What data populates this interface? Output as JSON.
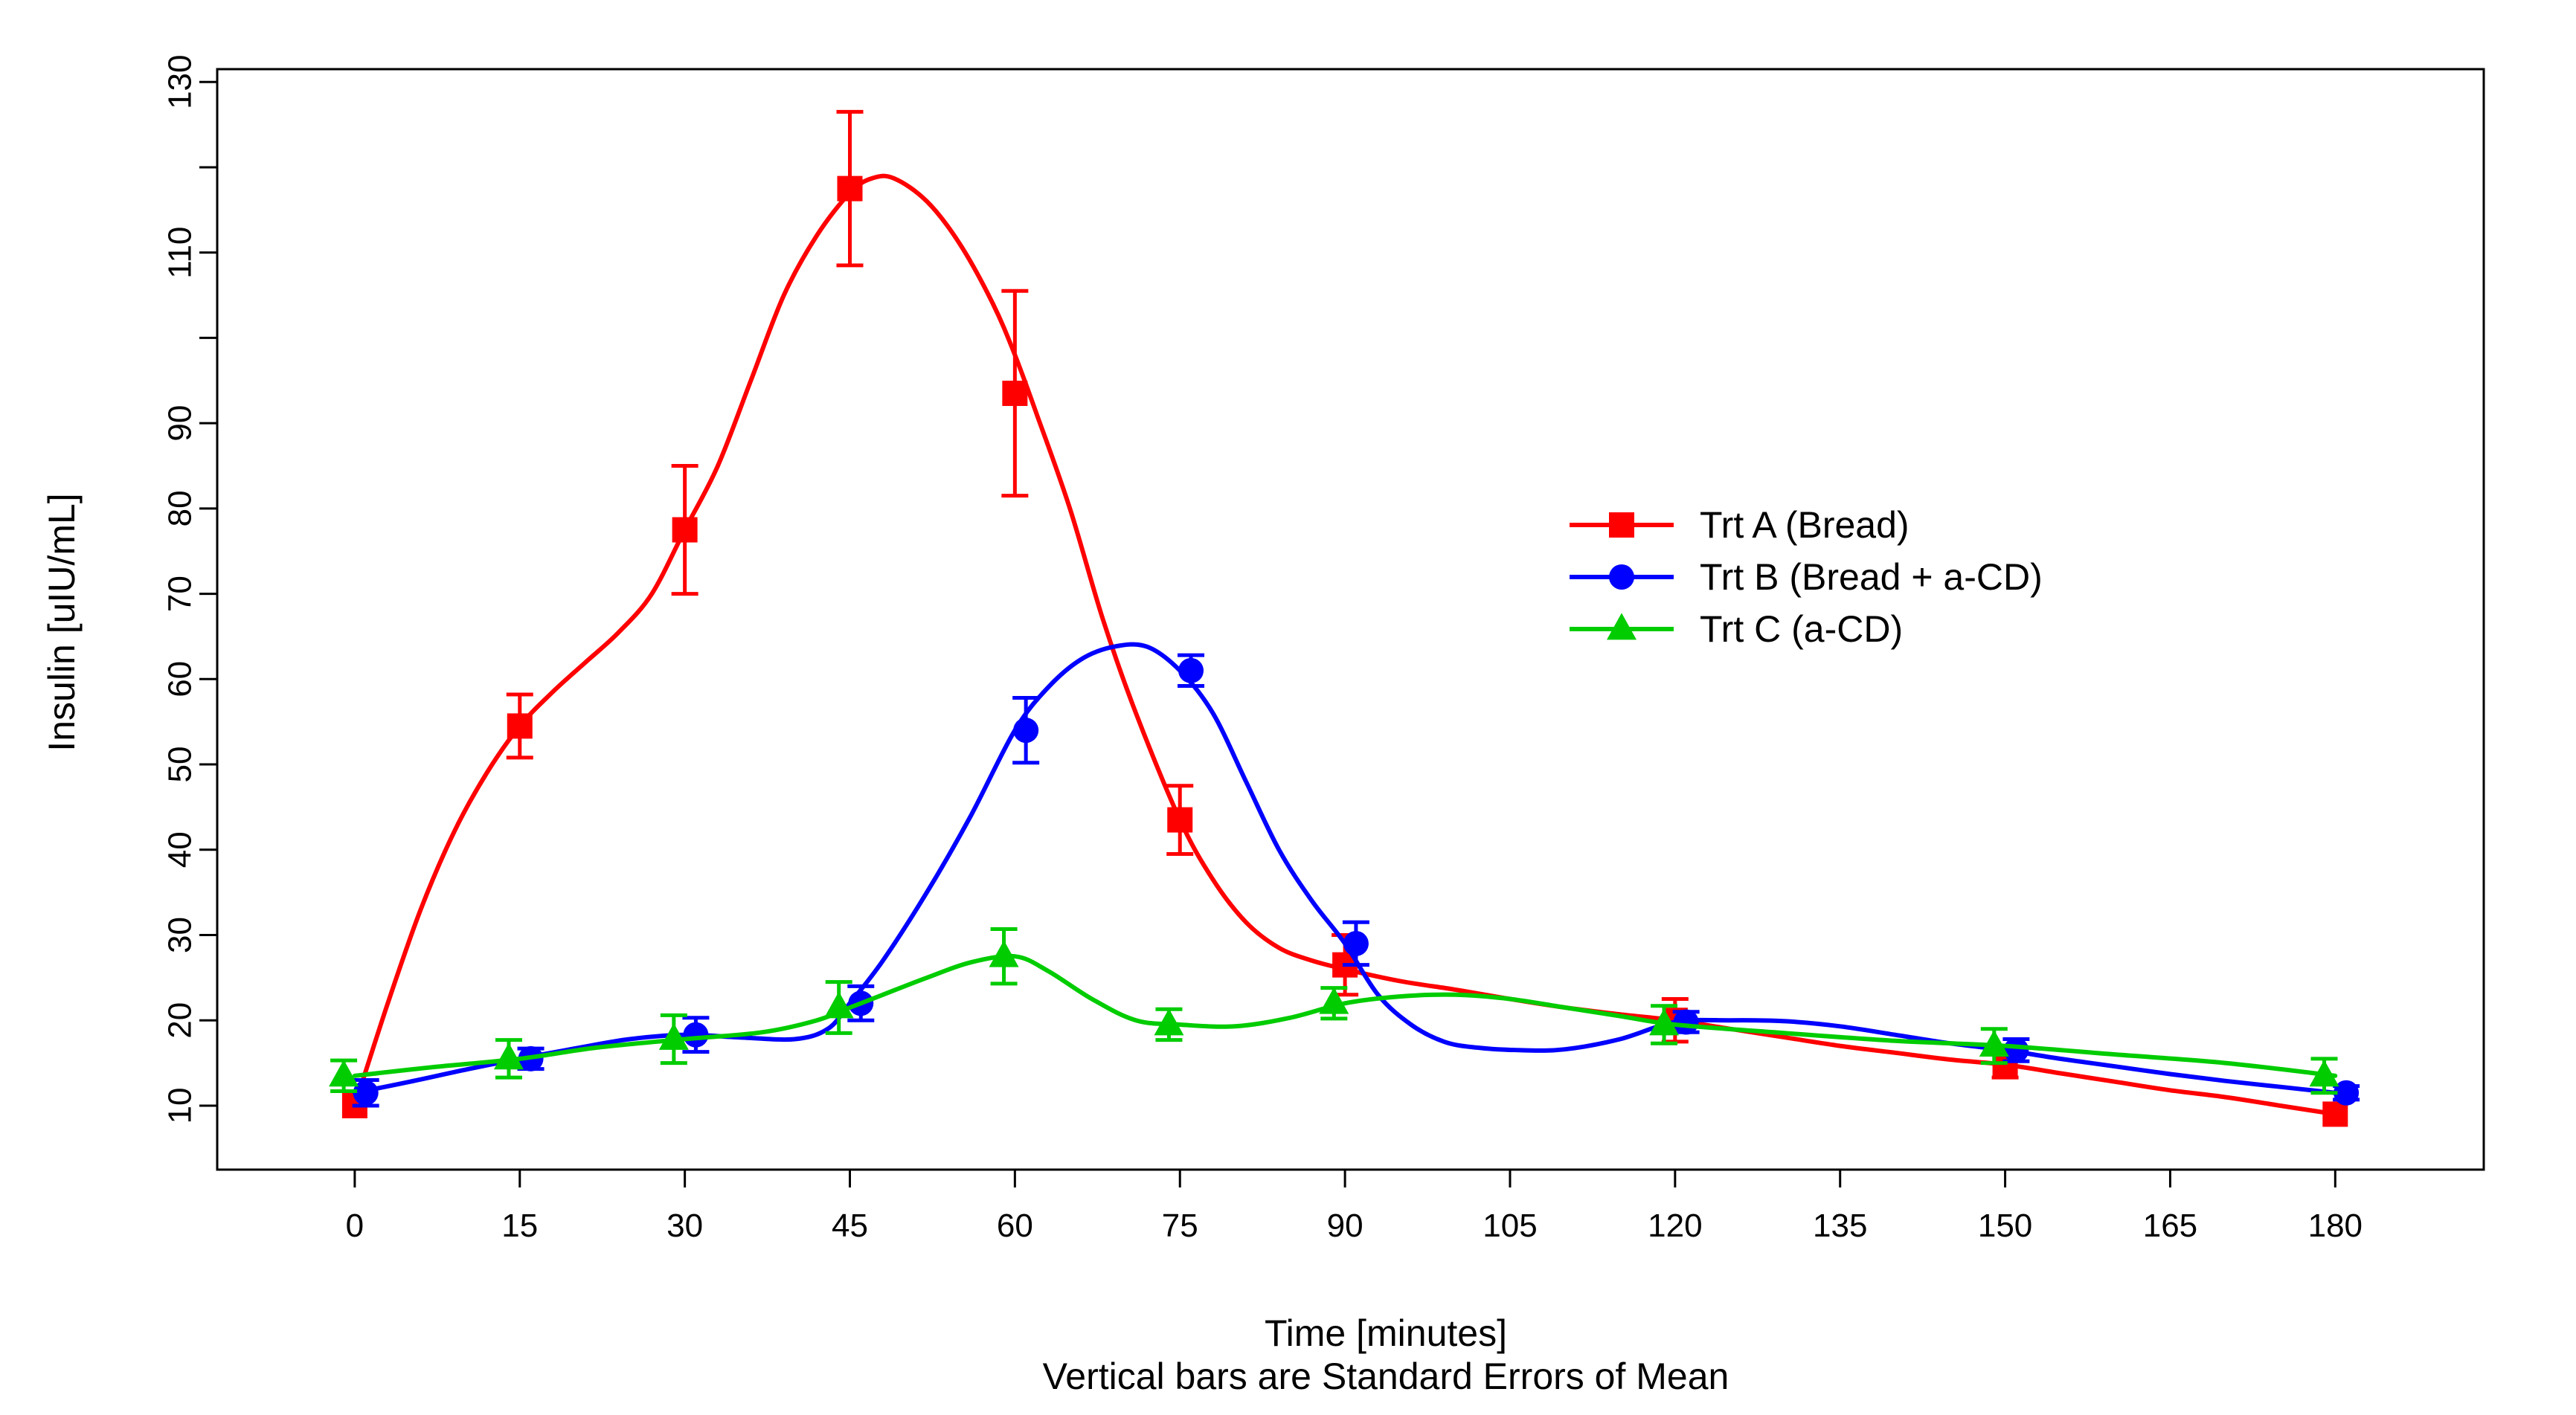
{
  "chart_data": {
    "type": "line",
    "title": "",
    "xlabel": "Time [minutes]",
    "subtitle": "Vertical bars are Standard Errors of Mean",
    "ylabel": "Insulin [uIU/mL]",
    "xlim": [
      -12.5,
      193.5
    ],
    "ylim": [
      2.5,
      131.5
    ],
    "x_ticks": [
      0,
      15,
      30,
      45,
      60,
      75,
      90,
      105,
      120,
      135,
      150,
      165,
      180
    ],
    "x_tick_labels": [
      "0",
      "15",
      "30",
      "45",
      "60",
      "75",
      "90",
      "105",
      "120",
      "135",
      "150",
      "165",
      "180"
    ],
    "y_ticks": [
      10,
      20,
      30,
      40,
      50,
      60,
      70,
      80,
      90,
      100,
      110,
      120,
      130
    ],
    "y_tick_labels": [
      "10",
      "20",
      "30",
      "40",
      "50",
      "60",
      "70",
      "80",
      "90",
      "",
      "110",
      "",
      "130"
    ],
    "legend_position": "center-right",
    "series": [
      {
        "name": "Trt A (Bread)",
        "color": "#ff0000",
        "marker": "square",
        "x_offset": 0,
        "points": [
          {
            "x": 0,
            "y": 10,
            "se": 0
          },
          {
            "x": 15,
            "y": 54.5,
            "se": 3.7
          },
          {
            "x": 30,
            "y": 77.5,
            "se": 7.5
          },
          {
            "x": 45,
            "y": 117.5,
            "se": 9
          },
          {
            "x": 60,
            "y": 93.5,
            "se": 12
          },
          {
            "x": 75,
            "y": 43.5,
            "se": 4
          },
          {
            "x": 90,
            "y": 26.5,
            "se": 3.5
          },
          {
            "x": 120,
            "y": 20,
            "se": 2.5
          },
          {
            "x": 150,
            "y": 14.8,
            "se": 1.5
          },
          {
            "x": 180,
            "y": 9,
            "se": 0
          }
        ],
        "curve": [
          [
            0,
            10
          ],
          [
            3,
            22
          ],
          [
            6,
            33
          ],
          [
            9,
            42
          ],
          [
            12,
            49
          ],
          [
            15,
            54.5
          ],
          [
            18,
            58.5
          ],
          [
            21,
            62
          ],
          [
            24,
            65.5
          ],
          [
            27,
            70
          ],
          [
            30,
            77.5
          ],
          [
            33,
            85
          ],
          [
            36,
            95
          ],
          [
            39,
            105
          ],
          [
            42,
            112
          ],
          [
            45,
            117
          ],
          [
            47,
            118.7
          ],
          [
            49,
            118.7
          ],
          [
            52,
            116
          ],
          [
            55,
            111
          ],
          [
            58,
            104
          ],
          [
            60,
            98
          ],
          [
            62,
            91
          ],
          [
            65,
            80
          ],
          [
            68,
            67
          ],
          [
            71,
            56
          ],
          [
            75,
            43.5
          ],
          [
            78,
            36.5
          ],
          [
            81,
            31.5
          ],
          [
            84,
            28.5
          ],
          [
            87,
            27
          ],
          [
            90,
            26
          ],
          [
            95,
            24.6
          ],
          [
            100,
            23.6
          ],
          [
            105,
            22.5
          ],
          [
            110,
            21.5
          ],
          [
            115,
            20.7
          ],
          [
            120,
            20
          ],
          [
            125,
            19
          ],
          [
            130,
            18
          ],
          [
            135,
            17
          ],
          [
            140,
            16.2
          ],
          [
            145,
            15.4
          ],
          [
            150,
            14.8
          ],
          [
            155,
            13.8
          ],
          [
            160,
            12.8
          ],
          [
            165,
            11.8
          ],
          [
            170,
            11
          ],
          [
            175,
            10
          ],
          [
            180,
            9
          ]
        ]
      },
      {
        "name": "Trt B (Bread + a-CD)",
        "color": "#0000ff",
        "marker": "circle",
        "x_offset": 1,
        "points": [
          {
            "x": 0,
            "y": 11.5,
            "se": 1.5
          },
          {
            "x": 15,
            "y": 15.5,
            "se": 1.2
          },
          {
            "x": 30,
            "y": 18.3,
            "se": 2
          },
          {
            "x": 45,
            "y": 22,
            "se": 2
          },
          {
            "x": 60,
            "y": 54,
            "se": 3.8
          },
          {
            "x": 75,
            "y": 61,
            "se": 1.8
          },
          {
            "x": 90,
            "y": 29,
            "se": 2.5
          },
          {
            "x": 120,
            "y": 19.8,
            "se": 1.2
          },
          {
            "x": 150,
            "y": 16.5,
            "se": 1.3
          },
          {
            "x": 180,
            "y": 11.5,
            "se": 0.8
          }
        ],
        "curve": [
          [
            0,
            11.5
          ],
          [
            5,
            12.8
          ],
          [
            10,
            14.2
          ],
          [
            15,
            15.5
          ],
          [
            20,
            16.7
          ],
          [
            25,
            17.8
          ],
          [
            30,
            18.3
          ],
          [
            35,
            18
          ],
          [
            40,
            17.8
          ],
          [
            43,
            19
          ],
          [
            45,
            22
          ],
          [
            48,
            27
          ],
          [
            52,
            35
          ],
          [
            56,
            44
          ],
          [
            60,
            54
          ],
          [
            63,
            59
          ],
          [
            66,
            62.3
          ],
          [
            69,
            63.8
          ],
          [
            72,
            63.8
          ],
          [
            75,
            61
          ],
          [
            78,
            56
          ],
          [
            81,
            48
          ],
          [
            84,
            40
          ],
          [
            87,
            34
          ],
          [
            90,
            29
          ],
          [
            93,
            23
          ],
          [
            96,
            19.5
          ],
          [
            99,
            17.5
          ],
          [
            102,
            16.8
          ],
          [
            106,
            16.5
          ],
          [
            110,
            16.6
          ],
          [
            115,
            17.8
          ],
          [
            120,
            19.8
          ],
          [
            125,
            20
          ],
          [
            130,
            19.9
          ],
          [
            135,
            19.3
          ],
          [
            140,
            18.3
          ],
          [
            145,
            17.3
          ],
          [
            150,
            16.5
          ],
          [
            155,
            15.5
          ],
          [
            160,
            14.6
          ],
          [
            165,
            13.7
          ],
          [
            170,
            12.9
          ],
          [
            175,
            12.2
          ],
          [
            180,
            11.5
          ]
        ]
      },
      {
        "name": "Trt C (a-CD)",
        "color": "#00cc00",
        "marker": "triangle",
        "x_offset": -1,
        "points": [
          {
            "x": 0,
            "y": 13.5,
            "se": 1.8
          },
          {
            "x": 15,
            "y": 15.5,
            "se": 2.2
          },
          {
            "x": 30,
            "y": 17.8,
            "se": 2.8
          },
          {
            "x": 45,
            "y": 21.5,
            "se": 3
          },
          {
            "x": 60,
            "y": 27.5,
            "se": 3.2
          },
          {
            "x": 75,
            "y": 19.5,
            "se": 1.8
          },
          {
            "x": 90,
            "y": 22,
            "se": 1.8
          },
          {
            "x": 120,
            "y": 19.5,
            "se": 2.2
          },
          {
            "x": 150,
            "y": 17,
            "se": 2
          },
          {
            "x": 180,
            "y": 13.5,
            "se": 2
          }
        ],
        "curve": [
          [
            0,
            13.5
          ],
          [
            7,
            14.5
          ],
          [
            15,
            15.5
          ],
          [
            22,
            16.8
          ],
          [
            30,
            17.8
          ],
          [
            37,
            18.6
          ],
          [
            42,
            20
          ],
          [
            45,
            21.5
          ],
          [
            48,
            23
          ],
          [
            52,
            25
          ],
          [
            56,
            26.8
          ],
          [
            60,
            27.5
          ],
          [
            63,
            25.8
          ],
          [
            67,
            22.5
          ],
          [
            71,
            20
          ],
          [
            75,
            19.5
          ],
          [
            80,
            19.3
          ],
          [
            85,
            20.3
          ],
          [
            90,
            22
          ],
          [
            95,
            22.8
          ],
          [
            100,
            23
          ],
          [
            105,
            22.5
          ],
          [
            110,
            21.5
          ],
          [
            115,
            20.5
          ],
          [
            120,
            19.5
          ],
          [
            130,
            18.5
          ],
          [
            140,
            17.6
          ],
          [
            150,
            17
          ],
          [
            160,
            16
          ],
          [
            170,
            15
          ],
          [
            180,
            13.5
          ]
        ]
      }
    ]
  }
}
